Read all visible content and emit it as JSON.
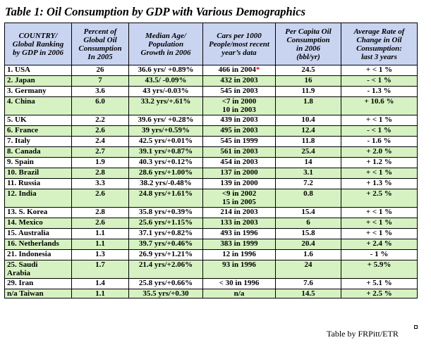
{
  "title": "Table 1: Oil Consumption by GDP with Various Demographics",
  "headers": [
    {
      "l1": "COUNTRY/",
      "l2": "Global Ranking",
      "l3": "by GDP in 2006"
    },
    {
      "l1": "Percent of",
      "l2": "Global Oil",
      "l3": "Consumption",
      "l4": "In 2005"
    },
    {
      "l1": "Median Age/",
      "l2": "Population",
      "l3": "Growth in 2006"
    },
    {
      "l1": "Cars per 1000",
      "l2": "People/most recent",
      "l3": "year’s data"
    },
    {
      "l1": "Per Capita Oil",
      "l2": "Consumption",
      "l3": "in 2006",
      "l4": "(bbl/yr)"
    },
    {
      "l1": "Average Rate of",
      "l2": "Change in Oil",
      "l3": "Consumption:",
      "l4": "last 3 years"
    }
  ],
  "rows": [
    {
      "country": "1.  USA",
      "percent": "26",
      "median_age": "36.6 yrs/ +0.89%",
      "cars_l1": "466 in 2004",
      "cars_l2": "",
      "cars_star": "*",
      "per_capita": "24.5",
      "change": "+ < 1 %"
    },
    {
      "country": "2.  Japan",
      "percent": "7",
      "median_age": "43.5/ -0.09%",
      "cars_l1": "432 in 2003",
      "cars_l2": "",
      "cars_star": "",
      "per_capita": "16",
      "change": "- < 1 %"
    },
    {
      "country": "3.  Germany",
      "percent": "3.6",
      "median_age": "43 yrs/-0.03%",
      "cars_l1": "545 in 2003",
      "cars_l2": "",
      "cars_star": "",
      "per_capita": "11.9",
      "change": "- 1.3 %"
    },
    {
      "country": "4.  China",
      "percent": "6.0",
      "median_age": "33.2 yrs/+.61%",
      "cars_l1": "<7 in 2000",
      "cars_l2": "10 in 2003",
      "cars_star": "",
      "per_capita": "1.8",
      "change": "+ 10.6 %"
    },
    {
      "country": "5.  UK",
      "percent": "2.2",
      "median_age": "39.6 yrs/ +0.28%",
      "cars_l1": "439 in 2003",
      "cars_l2": "",
      "cars_star": "",
      "per_capita": "10.4",
      "change": "+ < 1 %"
    },
    {
      "country": "6.  France",
      "percent": "2.6",
      "median_age": "39 yrs/+0.59%",
      "cars_l1": "495 in 2003",
      "cars_l2": "",
      "cars_star": "",
      "per_capita": "12.4",
      "change": "- < 1 %"
    },
    {
      "country": "7.  Italy",
      "percent": "2.4",
      "median_age": "42.5 yrs/+0.01%",
      "cars_l1": "545 in 1999",
      "cars_l2": "",
      "cars_star": "",
      "per_capita": "11.8",
      "change": "- 1.6 %"
    },
    {
      "country": "8.  Canada",
      "percent": "2.7",
      "median_age": "39.1 yrs/+0.87%",
      "cars_l1": "561 in 2003",
      "cars_l2": "",
      "cars_star": "",
      "per_capita": "25.4",
      "change": "+ 2.0  %"
    },
    {
      "country": "9.  Spain",
      "percent": "1.9",
      "median_age": "40.3 yrs/+0.12%",
      "cars_l1": "454 in 2003",
      "cars_l2": "",
      "cars_star": "",
      "per_capita": "14",
      "change": "+ 1.2 %"
    },
    {
      "country": "10.  Brazil",
      "percent": "2.8",
      "median_age": "28.6 yrs/+1.00%",
      "cars_l1": "137 in 2000",
      "cars_l2": "",
      "cars_star": "",
      "per_capita": "3.1",
      "change": "+ < 1 %"
    },
    {
      "country": "11.  Russia",
      "percent": "3.3",
      "median_age": "38.2 yrs/-0.48%",
      "cars_l1": "139 in 2000",
      "cars_l2": "",
      "cars_star": "",
      "per_capita": "7.2",
      "change": "+ 1.3 %"
    },
    {
      "country": "12.  India",
      "percent": "2.6",
      "median_age": "24.8 yrs/+1.61%",
      "cars_l1": "<9 in 2002",
      "cars_l2": "15 in 2005",
      "cars_star": "",
      "per_capita": "0.8",
      "change": "+ 2.5 %"
    },
    {
      "country": "13.  S. Korea",
      "percent": "2.8",
      "median_age": "35.8 yrs/+0.39%",
      "cars_l1": "214 in 2003",
      "cars_l2": "",
      "cars_star": "",
      "per_capita": "15.4",
      "change": "+ < 1 %"
    },
    {
      "country": "14.  Mexico",
      "percent": "2.6",
      "median_age": "25.6 yrs/+1.15%",
      "cars_l1": "133 in 2003",
      "cars_l2": "",
      "cars_star": "",
      "per_capita": "6",
      "change": "+ < 1 %"
    },
    {
      "country": "15.  Australia",
      "percent": "1.1",
      "median_age": "37.1 yrs/+0.82%",
      "cars_l1": "493 in 1996",
      "cars_l2": "",
      "cars_star": "",
      "per_capita": "15.8",
      "change": "+ < 1 %"
    },
    {
      "country": "16.  Netherlands",
      "percent": "1.1",
      "median_age": "39.7 yrs/+0.46%",
      "cars_l1": "383 in 1999",
      "cars_l2": "",
      "cars_star": "",
      "per_capita": "20.4",
      "change": "+ 2.4 %"
    },
    {
      "country": "21.  Indonesia",
      "percent": "1.3",
      "median_age": "26.9 yrs/+1.21%",
      "cars_l1": "12 in 1996",
      "cars_l2": "",
      "cars_star": "",
      "per_capita": "1.6",
      "change": "- 1 %"
    },
    {
      "country": "25.  Saudi",
      "country_l2": "Arabia",
      "percent": "1.7",
      "median_age": "21.4 yrs/+2.06%",
      "cars_l1": "93 in 1996",
      "cars_l2": "",
      "cars_star": "",
      "per_capita": "24",
      "change": "+ 5.9%"
    },
    {
      "country": "29.  Iran",
      "percent": "1.4",
      "median_age": "25.8 yrs/+0.66%",
      "cars_l1": "< 30 in 1996",
      "cars_l2": "",
      "cars_star": "",
      "per_capita": "7.6",
      "change": "+ 5.1 %"
    },
    {
      "country": "n/a  Taiwan",
      "percent": "1.1",
      "median_age": "35.5 yrs/+0.30",
      "cars_l1": "n/a",
      "cars_l2": "",
      "cars_star": "",
      "per_capita": "14.5",
      "change": "+ 2.5 %"
    }
  ],
  "credit": "Table by FRPitt/ETR",
  "colors": {
    "header_bg": "#c9d4f1",
    "green_row_bg": "#d6f2c2",
    "white_row_bg": "#ffffff",
    "asterisk": "#e8001c"
  }
}
